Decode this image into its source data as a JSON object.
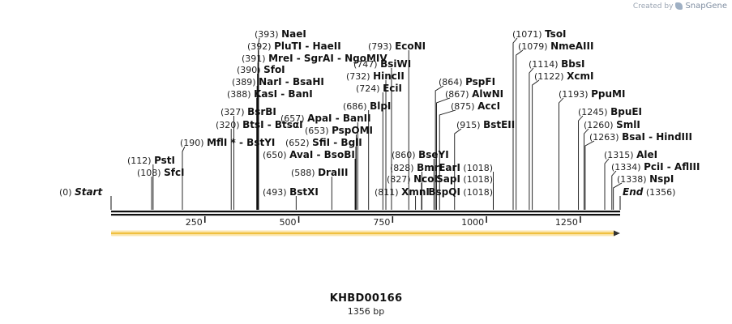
{
  "credit": {
    "prefix": "Created by",
    "brand": "SnapGene"
  },
  "plasmid": {
    "name": "KHBD00166",
    "length_label": "1356 bp",
    "length": 1356
  },
  "feature": {
    "type": "arrow",
    "direction": "forward",
    "start": 1,
    "end": 1356,
    "color": "#f0c040"
  },
  "ruler": {
    "ticks": [
      250,
      500,
      750,
      1000,
      1250
    ]
  },
  "ends": [
    {
      "name": "Start",
      "pos": 0,
      "label": "(0)"
    },
    {
      "name": "End",
      "pos": 1356,
      "label": "(1356)"
    }
  ],
  "sites": [
    {
      "text": "SfcI",
      "pos": 108
    },
    {
      "text": "PstI",
      "pos": 112
    },
    {
      "text": "MflI * - BstYI",
      "pos": 190
    },
    {
      "text": "BtsI - BtsαI",
      "pos": 320
    },
    {
      "text": "BsrBI",
      "pos": 327
    },
    {
      "text": "KasI - BanI",
      "pos": 388
    },
    {
      "text": "NarI - BsaHI",
      "pos": 389
    },
    {
      "text": "SfoI",
      "pos": 390
    },
    {
      "text": "MreI - SgrAI - NgoMIV",
      "pos": 391
    },
    {
      "text": "PluTI - HaeII",
      "pos": 392
    },
    {
      "text": "NaeI",
      "pos": 393
    },
    {
      "text": "BstXI",
      "pos": 493
    },
    {
      "text": "DraIII",
      "pos": 588
    },
    {
      "text": "AvaI - BsoBI",
      "pos": 650
    },
    {
      "text": "SfiI - BglI",
      "pos": 652
    },
    {
      "text": "PspOMI",
      "pos": 653
    },
    {
      "text": "ApaI - BanII",
      "pos": 657
    },
    {
      "text": "BlpI",
      "pos": 686
    },
    {
      "text": "EciI",
      "pos": 724
    },
    {
      "text": "HincII",
      "pos": 732
    },
    {
      "text": "BsiWI",
      "pos": 747
    },
    {
      "text": "EcoNI",
      "pos": 793
    },
    {
      "text": "XmnI",
      "pos": 811
    },
    {
      "text": "NcoI",
      "pos": 827
    },
    {
      "text": "BmrI",
      "pos": 828
    },
    {
      "text": "BseYI",
      "pos": 860
    },
    {
      "text": "PspFI",
      "pos": 864
    },
    {
      "text": "AlwNI",
      "pos": 867
    },
    {
      "text": "AccI",
      "pos": 875
    },
    {
      "text": "BstEII",
      "pos": 915
    },
    {
      "text": "BspQI",
      "pos": 1018
    },
    {
      "text": "SapI",
      "pos": 1018
    },
    {
      "text": "EarI",
      "pos": 1018
    },
    {
      "text": "TsoI",
      "pos": 1071
    },
    {
      "text": "NmeAIII",
      "pos": 1079
    },
    {
      "text": "BbsI",
      "pos": 1114
    },
    {
      "text": "XcmI",
      "pos": 1122
    },
    {
      "text": "PpuMI",
      "pos": 1193
    },
    {
      "text": "BpuEI",
      "pos": 1245
    },
    {
      "text": "SmlI",
      "pos": 1260
    },
    {
      "text": "BsaI - HindIII",
      "pos": 1263
    },
    {
      "text": "AleI",
      "pos": 1315
    },
    {
      "text": "PciI - AflIII",
      "pos": 1334
    },
    {
      "text": "NspI",
      "pos": 1338
    }
  ]
}
